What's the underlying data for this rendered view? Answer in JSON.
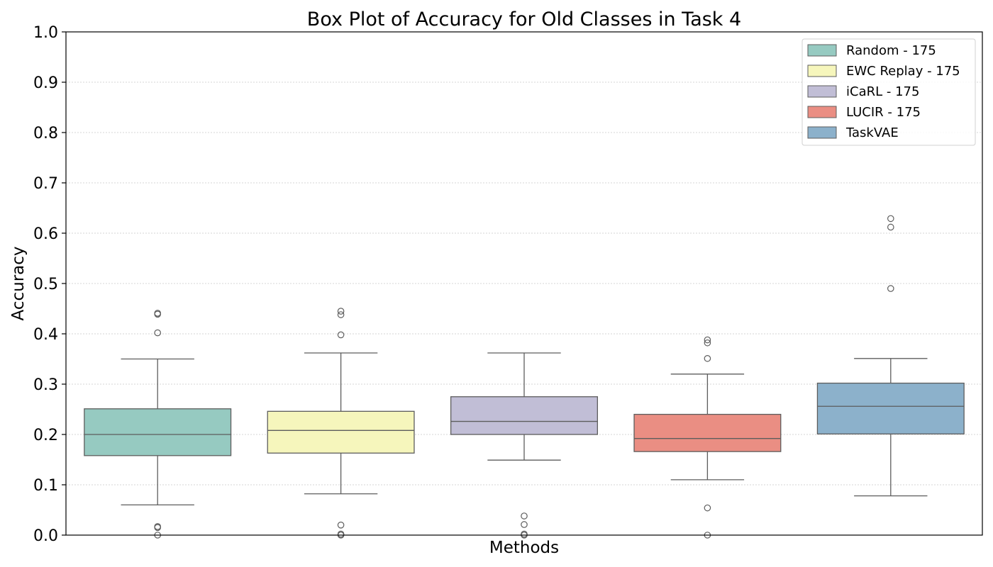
{
  "chart_data": {
    "type": "box",
    "title": "Box Plot of Accuracy for Old Classes in Task 4",
    "xlabel": "Methods",
    "ylabel": "Accuracy",
    "ylim": [
      0.0,
      1.0
    ],
    "yticks": [
      "0.0",
      "0.1",
      "0.2",
      "0.3",
      "0.4",
      "0.5",
      "0.6",
      "0.7",
      "0.8",
      "0.9",
      "1.0"
    ],
    "grid": "horizontal dotted",
    "legend_position": "top-right",
    "series": [
      {
        "name": "Random - 175",
        "color": "#96cac1",
        "whisker_low": 0.06,
        "q1": 0.158,
        "median": 0.2,
        "q3": 0.251,
        "whisker_high": 0.35,
        "outliers": [
          0.0,
          0.015,
          0.017,
          0.402,
          0.439,
          0.441
        ]
      },
      {
        "name": "EWC Replay - 175",
        "color": "#f6f6bc",
        "whisker_low": 0.082,
        "q1": 0.163,
        "median": 0.208,
        "q3": 0.246,
        "whisker_high": 0.362,
        "outliers": [
          0.0,
          0.002,
          0.02,
          0.398,
          0.438,
          0.445
        ]
      },
      {
        "name": "iCaRL - 175",
        "color": "#c1bed6",
        "whisker_low": 0.149,
        "q1": 0.2,
        "median": 0.226,
        "q3": 0.275,
        "whisker_high": 0.362,
        "outliers": [
          0.0,
          0.002,
          0.021,
          0.038
        ]
      },
      {
        "name": "LUCIR - 175",
        "color": "#ea8e83",
        "whisker_low": 0.11,
        "q1": 0.166,
        "median": 0.192,
        "q3": 0.24,
        "whisker_high": 0.32,
        "outliers": [
          0.0,
          0.054,
          0.351,
          0.382,
          0.388
        ]
      },
      {
        "name": "TaskVAE",
        "color": "#8cb1cb",
        "whisker_low": 0.078,
        "q1": 0.201,
        "median": 0.256,
        "q3": 0.302,
        "whisker_high": 0.351,
        "outliers": [
          0.49,
          0.612,
          0.629
        ]
      }
    ]
  }
}
